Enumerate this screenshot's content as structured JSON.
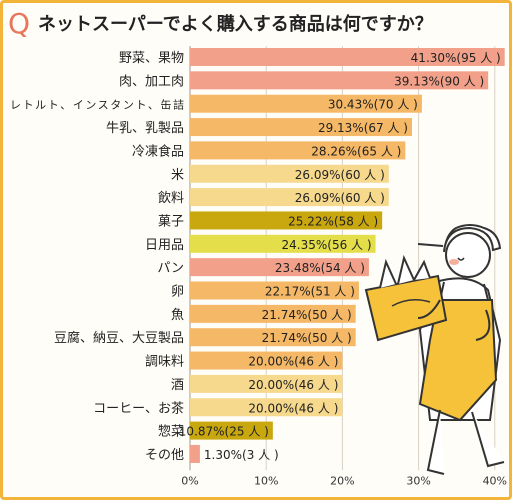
{
  "title_mark": "Q",
  "title": "ネットスーパーでよく購入する商品は何ですか？",
  "chart_data": {
    "type": "bar",
    "orientation": "horizontal",
    "categories": [
      "野菜、果物",
      "肉、加工肉",
      "レトルト、インスタント、缶詰",
      "牛乳、乳製品",
      "冷凍食品",
      "米",
      "飲料",
      "菓子",
      "日用品",
      "パン",
      "卵",
      "魚",
      "豆腐、納豆、大豆製品",
      "調味料",
      "酒",
      "コーヒー、お茶",
      "惣菜",
      "その他"
    ],
    "values": [
      41.3,
      39.13,
      30.43,
      29.13,
      28.26,
      26.09,
      26.09,
      25.22,
      24.35,
      23.48,
      22.17,
      21.74,
      21.74,
      20.0,
      20.0,
      20.0,
      10.87,
      1.3
    ],
    "labels": [
      "41.30%(95 人 )",
      "39.13%(90 人 )",
      "30.43%(70 人 )",
      "29.13%(67 人 )",
      "28.26%(65 人 )",
      "26.09%(60 人 )",
      "26.09%(60 人 )",
      "25.22%(58 人 )",
      "24.35%(56 人 )",
      "23.48%(54 人 )",
      "22.17%(51 人 )",
      "21.74%(50 人 )",
      "21.74%(50 人 )",
      "20.00%(46 人 )",
      "20.00%(46 人 )",
      "20.00%(46 人 )",
      "10.87%(25 人 )",
      "1.30%(3 人 )"
    ],
    "colors": [
      "#f2a08a",
      "#f2a08a",
      "#f4b866",
      "#f4b866",
      "#f4b866",
      "#f6d98d",
      "#f6d98d",
      "#c9a70f",
      "#e3de4a",
      "#f2a08a",
      "#f4b866",
      "#f4b866",
      "#f4b866",
      "#f4b866",
      "#f6d98d",
      "#f6d98d",
      "#c9a70f",
      "#f2a08a"
    ],
    "xticks": [
      "0%",
      "10%",
      "20%",
      "30%",
      "40%"
    ],
    "xlim": [
      0,
      42
    ],
    "grid": true
  }
}
